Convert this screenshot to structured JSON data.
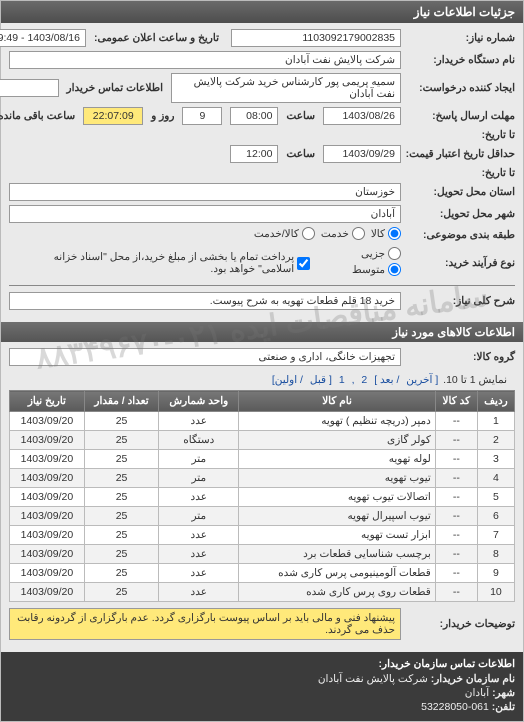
{
  "header": {
    "title": "جزئیات اطلاعات نیاز"
  },
  "fields": {
    "need_number": {
      "label": "شماره نیاز:",
      "value": "1103092179002835"
    },
    "announce_datetime": {
      "label": "تاریخ و ساعت اعلان عمومی:",
      "value": "1403/08/16 - 09:49"
    },
    "buyer_org": {
      "label": "نام دستگاه خریدار:",
      "value": "شرکت پالایش نفت آبادان"
    },
    "requester": {
      "label": "ایجاد کننده درخواست:",
      "value": "سمیه پریمی پور  کارشناس خرید شرکت پالایش نفت آبادان"
    },
    "buyer_contact": {
      "label": "اطلاعات تماس خریدار",
      "value": ""
    },
    "deadline_send": {
      "label": "مهلت ارسال پاسخ:",
      "date": "1403/08/26",
      "time_label": "ساعت",
      "time": "08:00"
    },
    "remaining": {
      "days": "9",
      "days_label": "روز و",
      "time": "22:07:09",
      "suffix": "ساعت باقی مانده"
    },
    "to_date": {
      "label": "تا تاریخ:"
    },
    "validity": {
      "label": "حداقل تاریخ اعتبار قیمت:",
      "date": "1403/09/29",
      "time_label": "ساعت",
      "time": "12:00"
    },
    "validity_to": {
      "label": "تا تاریخ:"
    },
    "province": {
      "label": "استان محل تحویل:",
      "value": "خوزستان"
    },
    "city": {
      "label": "شهر محل تحویل:",
      "value": "آبادان"
    },
    "subject_cat": {
      "label": "طبقه بندی موضوعی:",
      "opts": [
        {
          "label": "کالا",
          "checked": true
        },
        {
          "label": "خدمت",
          "checked": false
        },
        {
          "label": "کالا/خدمت",
          "checked": false
        }
      ]
    },
    "purchase_type": {
      "label": "نوع فرآیند خرید:",
      "opts": [
        {
          "label": "جزیی",
          "checked": false
        },
        {
          "label": "متوسط",
          "checked": true
        }
      ],
      "note_checked": true,
      "note": "پرداخت تمام یا بخشی از مبلغ خرید،از محل \"اسناد خزانه اسلامی\" خواهد بود."
    },
    "need_desc": {
      "label": "شرح کلی نیاز:",
      "value": "خرید 18 قلم قطعات تهویه به شرح پیوست."
    }
  },
  "items_section": {
    "title": "اطلاعات کالاهای مورد نیاز",
    "group_label": "گروه کالا:",
    "group_value": "تجهیزات خانگی، اداری و صنعتی",
    "pager": {
      "text_prefix": "نمایش 1 تا 10.",
      "links": [
        "[ آخرین",
        "/ بعد ]",
        "2",
        ",",
        "1",
        "[ قبل",
        "/ اولین]"
      ]
    },
    "columns": [
      "ردیف",
      "کد کالا",
      "نام کالا",
      "واحد شمارش",
      "تعداد / مقدار",
      "تاریخ نیاز"
    ],
    "rows": [
      [
        "1",
        "--",
        "دمپر (دریچه تنظیم ) تهویه",
        "عدد",
        "25",
        "1403/09/20"
      ],
      [
        "2",
        "--",
        "کولر گازی",
        "دستگاه",
        "25",
        "1403/09/20"
      ],
      [
        "3",
        "--",
        "لوله تهویه",
        "متر",
        "25",
        "1403/09/20"
      ],
      [
        "4",
        "--",
        "تیوب تهویه",
        "متر",
        "25",
        "1403/09/20"
      ],
      [
        "5",
        "--",
        "اتصالات تیوب تهویه",
        "عدد",
        "25",
        "1403/09/20"
      ],
      [
        "6",
        "--",
        "تیوب اسپیرال تهویه",
        "متر",
        "25",
        "1403/09/20"
      ],
      [
        "7",
        "--",
        "ابزار تست تهویه",
        "عدد",
        "25",
        "1403/09/20"
      ],
      [
        "8",
        "--",
        "برچسب شناسایی قطعات برد",
        "عدد",
        "25",
        "1403/09/20"
      ],
      [
        "9",
        "--",
        "قطعات آلومینیومی پرس کاری شده",
        "عدد",
        "25",
        "1403/09/20"
      ],
      [
        "10",
        "--",
        "قطعات روی پرس کاری شده",
        "عدد",
        "25",
        "1403/09/20"
      ]
    ]
  },
  "buyer_note": {
    "label": "توضیحات خریدار:",
    "value": "پیشنهاد فنی و مالی باید بر اساس پیوست بارگزاری گردد. عدم بارگزاری از گردونه رقابت حذف می گردند."
  },
  "contact": {
    "title": "اطلاعات تماس سازمان خریدار:",
    "org_label": "نام سازمان خریدار:",
    "org": "شرکت پالایش نفت آبادان",
    "city_label": "شهر:",
    "city": "آبادان",
    "phone_label": "تلفن:",
    "phone": "061-53228050"
  },
  "watermark": "سامانه مناقصات ایده  ۰۲۱-۸۸۳۴۹۶۷۰",
  "colors": {
    "header_bg": "#555555",
    "yellow": "#ffe97a"
  }
}
